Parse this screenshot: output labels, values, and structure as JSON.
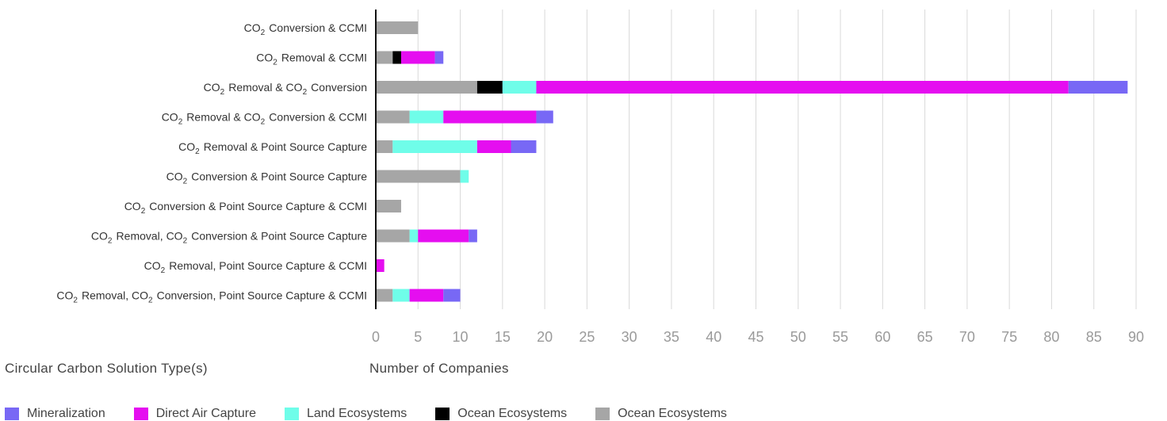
{
  "chart_data": {
    "type": "bar",
    "orientation": "horizontal",
    "stacked": true,
    "categories": [
      "CO₂ Conversion & CCMI",
      "CO₂ Removal & CCMI",
      "CO₂ Removal & CO₂ Conversion",
      "CO₂ Removal & CO₂ Conversion & CCMI",
      "CO₂ Removal & Point Source Capture",
      "CO₂ Conversion & Point Source Capture",
      "CO₂ Conversion & Point Source Capture & CCMI",
      "CO₂ Removal, CO₂ Conversion & Point Source Capture",
      "CO₂ Removal, Point Source Capture & CCMI",
      "CO₂ Removal, CO₂ Conversion, Point Source Capture & CCMI"
    ],
    "stack_order": [
      "Ocean Ecosystems (grey)",
      "Ocean Ecosystems (black)",
      "Land Ecosystems",
      "Direct Air Capture",
      "Mineralization"
    ],
    "series": [
      {
        "name": "Ocean Ecosystems",
        "color": "#a6a6a6",
        "values": [
          5,
          2,
          12,
          4,
          2,
          10,
          3,
          4,
          0,
          2
        ]
      },
      {
        "name": "Ocean Ecosystems",
        "color": "#000000",
        "values": [
          0,
          1,
          3,
          0,
          0,
          0,
          0,
          0,
          0,
          0
        ]
      },
      {
        "name": "Land Ecosystems",
        "color": "#6ffde9",
        "values": [
          0,
          0,
          4,
          4,
          10,
          1,
          0,
          1,
          0,
          2
        ]
      },
      {
        "name": "Direct Air Capture",
        "color": "#e50ef0",
        "values": [
          0,
          4,
          63,
          11,
          4,
          0,
          0,
          6,
          1,
          4
        ]
      },
      {
        "name": "Mineralization",
        "color": "#7868f5",
        "values": [
          0,
          1,
          7,
          2,
          3,
          0,
          0,
          1,
          0,
          2
        ]
      }
    ],
    "x_ticks": [
      "0",
      "5",
      "10",
      "15",
      "20",
      "25",
      "30",
      "35",
      "40",
      "45",
      "50",
      "55",
      "60",
      "65",
      "70",
      "75",
      "80",
      "85",
      "90"
    ],
    "xlim": [
      0,
      90
    ],
    "xlabel": "Number of Companies",
    "ylabel": "Circular Carbon Solution Type(s)",
    "grid": "vertical",
    "legend_position": "bottom",
    "legend": [
      {
        "label": "Mineralization",
        "color": "#7868f5"
      },
      {
        "label": "Direct Air Capture",
        "color": "#e50ef0"
      },
      {
        "label": "Land Ecosystems",
        "color": "#6ffde9"
      },
      {
        "label": "Ocean Ecosystems",
        "color": "#000000"
      },
      {
        "label": "Ocean Ecosystems",
        "color": "#a6a6a6"
      }
    ]
  }
}
